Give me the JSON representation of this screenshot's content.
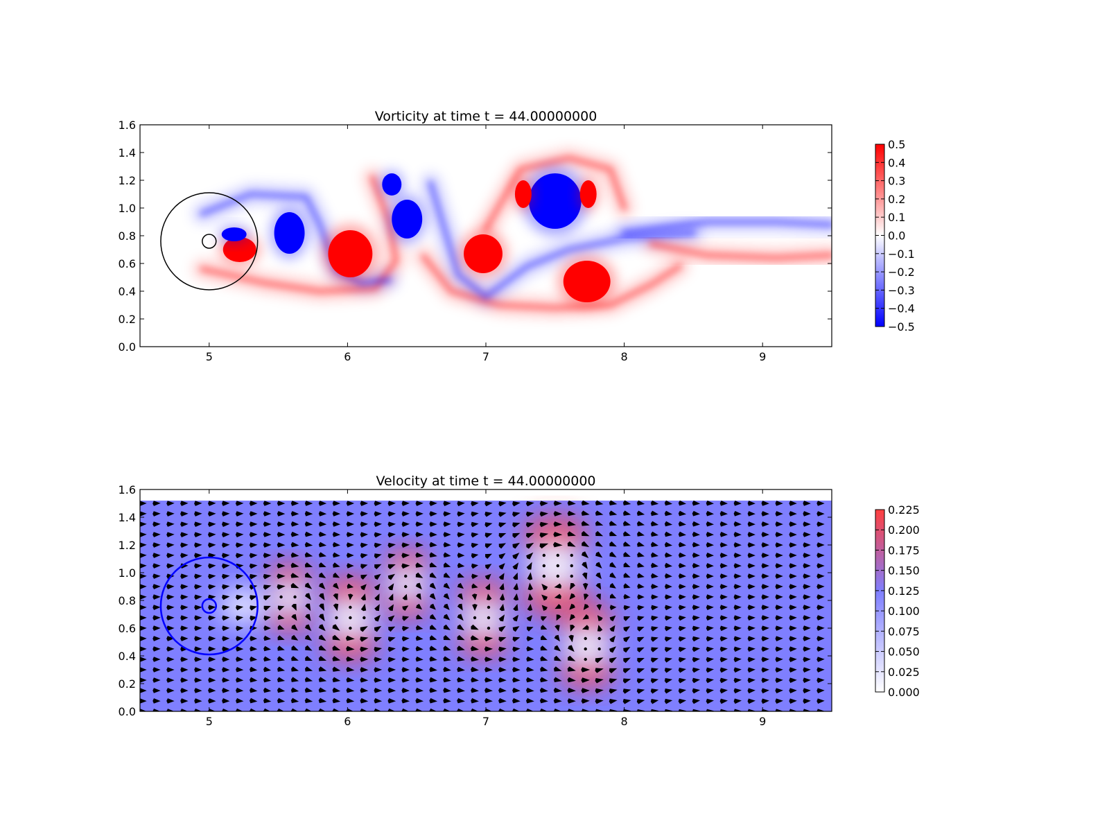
{
  "chart_data": [
    {
      "type": "heatmap",
      "title": "Vorticity at time t =    44.00000000",
      "xlabel": "",
      "ylabel": "",
      "xlim": [
        4.5,
        9.5
      ],
      "ylim": [
        0.0,
        1.6
      ],
      "xticks": [
        "5",
        "6",
        "7",
        "8",
        "9"
      ],
      "yticks": [
        "0.0",
        "0.2",
        "0.4",
        "0.6",
        "0.8",
        "1.0",
        "1.2",
        "1.4",
        "1.6"
      ],
      "colormap": {
        "negative": "#0000ff",
        "zero": "#ffffff",
        "positive": "#ff0000"
      },
      "colorbar": {
        "range": [
          -0.5,
          0.5
        ],
        "ticks": [
          "0.5",
          "0.4",
          "0.3",
          "0.2",
          "0.1",
          "0.0",
          "−0.1",
          "−0.2",
          "−0.3",
          "−0.4",
          "−0.5"
        ]
      },
      "background": "#ffffff",
      "overlay_circles": [
        {
          "cx": 5.0,
          "cy": 0.76,
          "r": 0.35,
          "color": "#000000"
        },
        {
          "cx": 5.0,
          "cy": 0.76,
          "r": 0.05,
          "color": "#000000"
        }
      ],
      "vortices": [
        {
          "x": 5.22,
          "y": 0.7,
          "rx": 0.12,
          "ry": 0.09,
          "sign": 1
        },
        {
          "x": 5.18,
          "y": 0.81,
          "rx": 0.09,
          "ry": 0.05,
          "sign": -1
        },
        {
          "x": 5.58,
          "y": 0.82,
          "rx": 0.11,
          "ry": 0.15,
          "sign": -1
        },
        {
          "x": 6.02,
          "y": 0.67,
          "rx": 0.16,
          "ry": 0.17,
          "sign": 1
        },
        {
          "x": 6.43,
          "y": 0.92,
          "rx": 0.11,
          "ry": 0.14,
          "sign": -1
        },
        {
          "x": 6.32,
          "y": 1.17,
          "rx": 0.07,
          "ry": 0.08,
          "sign": -1
        },
        {
          "x": 6.98,
          "y": 0.67,
          "rx": 0.14,
          "ry": 0.14,
          "sign": 1
        },
        {
          "x": 7.5,
          "y": 1.05,
          "rx": 0.19,
          "ry": 0.2,
          "sign": -1
        },
        {
          "x": 7.27,
          "y": 1.1,
          "rx": 0.06,
          "ry": 0.1,
          "sign": 1
        },
        {
          "x": 7.74,
          "y": 1.1,
          "rx": 0.06,
          "ry": 0.1,
          "sign": 1
        },
        {
          "x": 7.73,
          "y": 0.47,
          "rx": 0.17,
          "ry": 0.15,
          "sign": 1
        }
      ],
      "filaments": [
        {
          "sign": 1,
          "points": [
            [
              4.95,
              0.56
            ],
            [
              5.4,
              0.46
            ],
            [
              5.8,
              0.4
            ],
            [
              6.2,
              0.42
            ],
            [
              6.35,
              0.62
            ],
            [
              6.3,
              0.9
            ],
            [
              6.18,
              1.22
            ]
          ]
        },
        {
          "sign": -1,
          "points": [
            [
              4.95,
              0.96
            ],
            [
              5.3,
              1.1
            ],
            [
              5.7,
              1.08
            ],
            [
              5.8,
              0.88
            ],
            [
              5.92,
              0.55
            ],
            [
              6.1,
              0.46
            ],
            [
              6.3,
              0.48
            ]
          ]
        },
        {
          "sign": 1,
          "points": [
            [
              6.55,
              0.65
            ],
            [
              6.75,
              0.4
            ],
            [
              7.1,
              0.3
            ],
            [
              7.5,
              0.28
            ],
            [
              7.9,
              0.3
            ],
            [
              8.2,
              0.45
            ],
            [
              8.4,
              0.58
            ]
          ]
        },
        {
          "sign": -1,
          "points": [
            [
              6.6,
              1.18
            ],
            [
              6.8,
              0.52
            ],
            [
              7.0,
              0.36
            ],
            [
              7.3,
              0.58
            ],
            [
              7.6,
              0.7
            ],
            [
              8.0,
              0.78
            ],
            [
              8.5,
              0.82
            ]
          ]
        },
        {
          "sign": 1,
          "points": [
            [
              8.2,
              0.74
            ],
            [
              8.6,
              0.66
            ],
            [
              9.1,
              0.64
            ],
            [
              9.5,
              0.66
            ]
          ]
        },
        {
          "sign": -1,
          "points": [
            [
              8.0,
              0.82
            ],
            [
              8.6,
              0.9
            ],
            [
              9.1,
              0.9
            ],
            [
              9.5,
              0.88
            ]
          ]
        },
        {
          "sign": 1,
          "points": [
            [
              7.0,
              0.85
            ],
            [
              7.25,
              1.28
            ],
            [
              7.6,
              1.36
            ],
            [
              7.9,
              1.28
            ],
            [
              8.0,
              1.0
            ]
          ]
        }
      ]
    },
    {
      "type": "heatmap",
      "title": "Velocity at time t =    44.00000000",
      "xlabel": "",
      "ylabel": "",
      "xlim": [
        4.5,
        9.5
      ],
      "ylim": [
        0.0,
        1.6
      ],
      "field_top": 1.52,
      "xticks": [
        "5",
        "6",
        "7",
        "8",
        "9"
      ],
      "yticks": [
        "0.0",
        "0.2",
        "0.4",
        "0.6",
        "0.8",
        "1.0",
        "1.2",
        "1.4",
        "1.6"
      ],
      "colormap": {
        "low": "#ffffff",
        "mid": "#7f7fff",
        "high": "#ff3f3f"
      },
      "colorbar": {
        "range": [
          0.0,
          0.225
        ],
        "ticks": [
          "0.225",
          "0.200",
          "0.175",
          "0.150",
          "0.125",
          "0.100",
          "0.075",
          "0.050",
          "0.025",
          "0.000"
        ]
      },
      "base_speed": 0.11,
      "overlay_circles": [
        {
          "cx": 5.0,
          "cy": 0.76,
          "r": 0.35,
          "color": "#0000ff"
        },
        {
          "cx": 5.0,
          "cy": 0.76,
          "r": 0.05,
          "color": "#0000ff"
        }
      ],
      "vectors": "quiver arrows",
      "vortices": [
        {
          "x": 5.58,
          "y": 0.82,
          "r": 0.18,
          "sign": -1
        },
        {
          "x": 6.02,
          "y": 0.67,
          "r": 0.22,
          "sign": 1
        },
        {
          "x": 6.43,
          "y": 0.92,
          "r": 0.18,
          "sign": -1
        },
        {
          "x": 6.98,
          "y": 0.67,
          "r": 0.2,
          "sign": 1
        },
        {
          "x": 7.5,
          "y": 1.05,
          "r": 0.26,
          "sign": -1
        },
        {
          "x": 7.73,
          "y": 0.47,
          "r": 0.22,
          "sign": 1
        }
      ]
    }
  ]
}
